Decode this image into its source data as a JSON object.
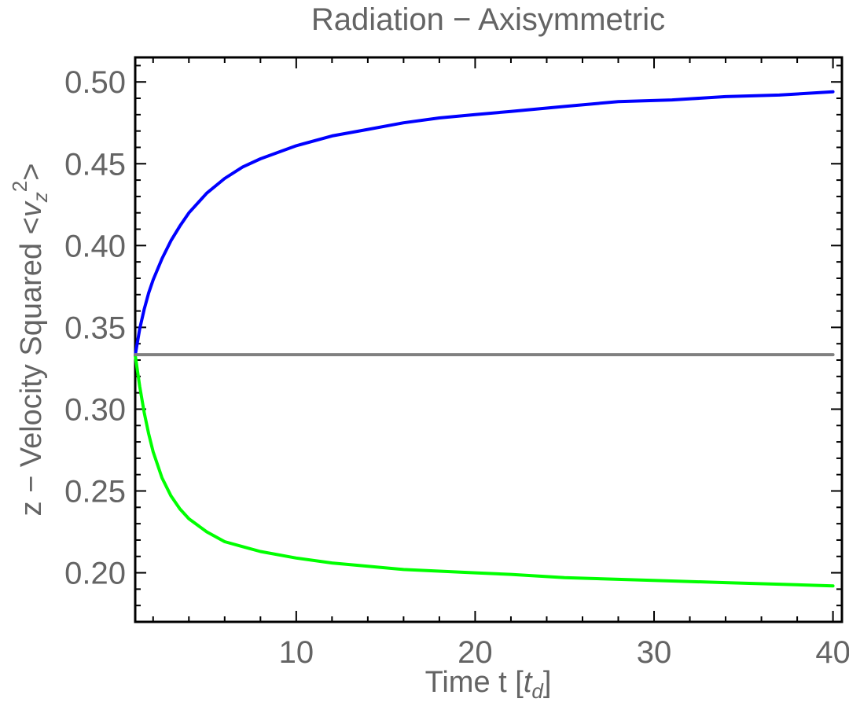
{
  "chart_data": {
    "type": "line",
    "title": "Radiation − Axisymmetric",
    "xlabel": {
      "prefix": "Time  t [",
      "var": "t",
      "sub": "d",
      "suffix": "]"
    },
    "ylabel": {
      "prefix": "z − Velocity Squared  <",
      "var": "v",
      "sub": "z",
      "sup": "2",
      "suffix": ">"
    },
    "xlim": [
      1,
      40.5
    ],
    "ylim": [
      0.17,
      0.515
    ],
    "xticks": [
      10,
      20,
      30,
      40
    ],
    "xtick_labels": [
      "10",
      "20",
      "30",
      "40"
    ],
    "yticks": [
      0.2,
      0.25,
      0.3,
      0.35,
      0.4,
      0.45,
      0.5
    ],
    "ytick_labels": [
      "0.20",
      "0.25",
      "0.30",
      "0.35",
      "0.40",
      "0.45",
      "0.50"
    ],
    "grid": false,
    "frame": true,
    "series": [
      {
        "color": "#0000ff",
        "x": [
          1,
          1.25,
          1.5,
          1.75,
          2,
          2.5,
          3,
          3.5,
          4,
          5,
          6,
          7,
          8,
          10,
          12,
          14,
          16,
          18,
          20,
          22,
          25,
          28,
          31,
          34,
          37,
          40
        ],
        "y": [
          0.333,
          0.349,
          0.361,
          0.371,
          0.379,
          0.392,
          0.403,
          0.412,
          0.42,
          0.432,
          0.441,
          0.448,
          0.453,
          0.461,
          0.467,
          0.471,
          0.475,
          0.478,
          0.48,
          0.482,
          0.485,
          0.488,
          0.489,
          0.491,
          0.492,
          0.494
        ]
      },
      {
        "color": "#00ff00",
        "x": [
          1,
          1.25,
          1.5,
          1.75,
          2,
          2.5,
          3,
          3.5,
          4,
          5,
          6,
          7,
          8,
          10,
          12,
          14,
          16,
          18,
          20,
          22,
          25,
          28,
          31,
          34,
          37,
          40
        ],
        "y": [
          0.333,
          0.314,
          0.298,
          0.285,
          0.274,
          0.258,
          0.247,
          0.239,
          0.233,
          0.225,
          0.219,
          0.216,
          0.213,
          0.209,
          0.206,
          0.204,
          0.202,
          0.201,
          0.2,
          0.199,
          0.197,
          0.196,
          0.195,
          0.194,
          0.193,
          0.192
        ]
      },
      {
        "color": "#808080",
        "x": [
          1,
          40
        ],
        "y": [
          0.3333,
          0.3333
        ]
      }
    ]
  }
}
